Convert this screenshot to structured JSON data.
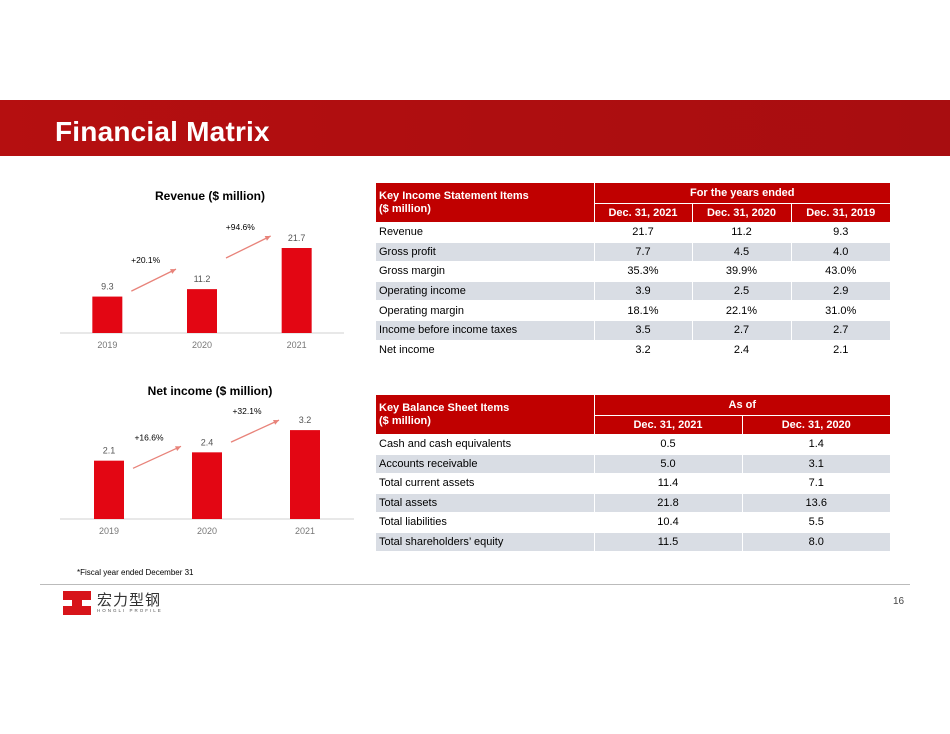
{
  "page": {
    "title": "Financial Matrix",
    "footnote": "*Fiscal year ended December 31",
    "page_number": "16",
    "logo": {
      "name_cn": "宏力型钢",
      "name_en": "HONGLI PROFILE"
    },
    "colors": {
      "brand_red": "#b50f10",
      "bar_red": "#e30613",
      "shade": "#d9dde4"
    }
  },
  "chart_data": [
    {
      "type": "bar",
      "title": "Revenue ($ million)",
      "categories": [
        "2019",
        "2020",
        "2021"
      ],
      "values": [
        9.3,
        11.2,
        21.7
      ],
      "value_labels": [
        "9.3",
        "11.2",
        "21.7"
      ],
      "growth_annotations": [
        "+20.1%",
        "+94.6%"
      ],
      "ylim": [
        0,
        24
      ]
    },
    {
      "type": "bar",
      "title": "Net income ($ million)",
      "categories": [
        "2019",
        "2020",
        "2021"
      ],
      "values": [
        2.1,
        2.4,
        3.2
      ],
      "value_labels": [
        "2.1",
        "2.4",
        "3.2"
      ],
      "growth_annotations": [
        "+16.6%",
        "+32.1%"
      ],
      "ylim": [
        0,
        3.6
      ]
    }
  ],
  "income_table": {
    "header_label": "Key Income Statement Items\n($ million)",
    "group_header": "For the years ended",
    "columns": [
      "Dec. 31, 2021",
      "Dec. 31, 2020",
      "Dec. 31, 2019"
    ],
    "rows": [
      {
        "label": "Revenue",
        "values": [
          "21.7",
          "11.2",
          "9.3"
        ]
      },
      {
        "label": "Gross profit",
        "values": [
          "7.7",
          "4.5",
          "4.0"
        ]
      },
      {
        "label": "Gross margin",
        "values": [
          "35.3%",
          "39.9%",
          "43.0%"
        ]
      },
      {
        "label": "Operating income",
        "values": [
          "3.9",
          "2.5",
          "2.9"
        ]
      },
      {
        "label": "Operating margin",
        "values": [
          "18.1%",
          "22.1%",
          "31.0%"
        ]
      },
      {
        "label": "Income before income taxes",
        "values": [
          "3.5",
          "2.7",
          "2.7"
        ]
      },
      {
        "label": "Net income",
        "values": [
          "3.2",
          "2.4",
          "2.1"
        ]
      }
    ]
  },
  "balance_table": {
    "header_label": "Key Balance Sheet Items\n($ million)",
    "group_header": "As of",
    "columns": [
      "Dec. 31, 2021",
      "Dec. 31, 2020"
    ],
    "rows": [
      {
        "label": "Cash and cash equivalents",
        "values": [
          "0.5",
          "1.4"
        ]
      },
      {
        "label": "Accounts receivable",
        "values": [
          "5.0",
          "3.1"
        ]
      },
      {
        "label": "Total current assets",
        "values": [
          "11.4",
          "7.1"
        ]
      },
      {
        "label": "Total assets",
        "values": [
          "21.8",
          "13.6"
        ]
      },
      {
        "label": "Total liabilities",
        "values": [
          "10.4",
          "5.5"
        ]
      },
      {
        "label": "Total shareholders’ equity",
        "values": [
          "11.5",
          "8.0"
        ]
      }
    ]
  }
}
